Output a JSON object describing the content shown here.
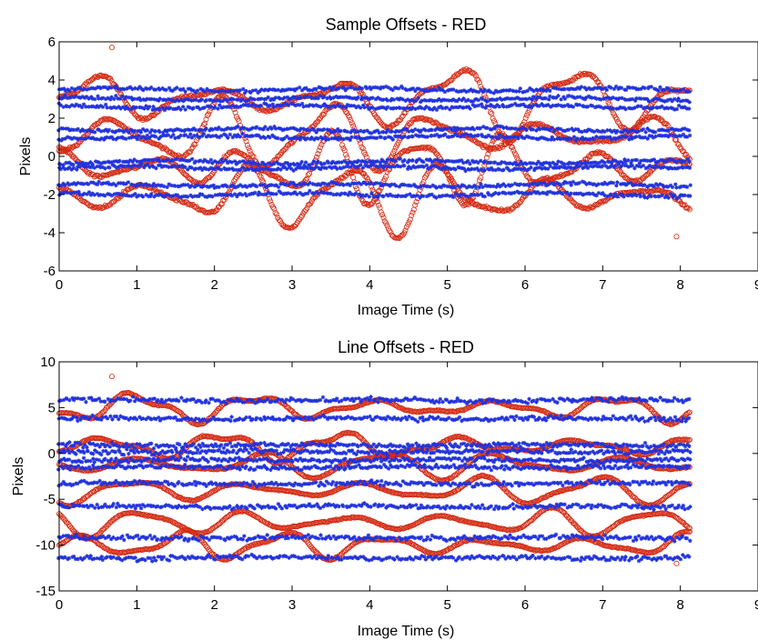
{
  "chart_data": [
    {
      "type": "scatter",
      "title": "Sample Offsets - RED",
      "xlabel": "Image Time (s)",
      "ylabel": "Pixels",
      "xlim": [
        0,
        9
      ],
      "ylim": [
        -6,
        6
      ],
      "xticks": [
        0,
        1,
        2,
        3,
        4,
        5,
        6,
        7,
        8,
        9
      ],
      "yticks": [
        -6,
        -4,
        -2,
        0,
        2,
        4,
        6
      ],
      "grid": false,
      "data_extent_x": [
        0,
        8.12
      ],
      "series": [
        {
          "marker": "circle",
          "color": "#d42a12",
          "band_centers": [
            3.0,
            1.1,
            -0.6,
            -2.1
          ],
          "amplitude_range": [
            0.6,
            2.3
          ],
          "extremes": {
            "max": 5.7,
            "min": -4.2
          }
        },
        {
          "marker": "star",
          "color": "#2233dd",
          "track_levels": [
            3.5,
            3.0,
            2.6,
            1.4,
            1.0,
            -0.3,
            -0.6,
            -1.5,
            -2.0
          ],
          "noise": 0.12
        }
      ]
    },
    {
      "type": "scatter",
      "title": "Line Offsets - RED",
      "xlabel": "Image Time (s)",
      "ylabel": "Pixels",
      "xlim": [
        0,
        9
      ],
      "ylim": [
        -15,
        10
      ],
      "xticks": [
        0,
        1,
        2,
        3,
        4,
        5,
        6,
        7,
        8,
        9
      ],
      "yticks": [
        -15,
        -10,
        -5,
        0,
        5,
        10
      ],
      "grid": false,
      "data_extent_x": [
        0,
        8.12
      ],
      "series": [
        {
          "marker": "circle",
          "color": "#d42a12",
          "band_centers": [
            5.0,
            0.8,
            -1.2,
            -4.0,
            -7.5,
            -10.0
          ],
          "amplitude_range": [
            0.7,
            1.9
          ],
          "extremes": {
            "max": 8.4,
            "min": -12.0
          }
        },
        {
          "marker": "star",
          "color": "#2233dd",
          "track_levels": [
            5.8,
            3.8,
            0.9,
            0.2,
            -0.7,
            -1.5,
            -3.3,
            -5.8,
            -9.2,
            -11.4
          ],
          "noise": 0.15
        }
      ]
    }
  ]
}
